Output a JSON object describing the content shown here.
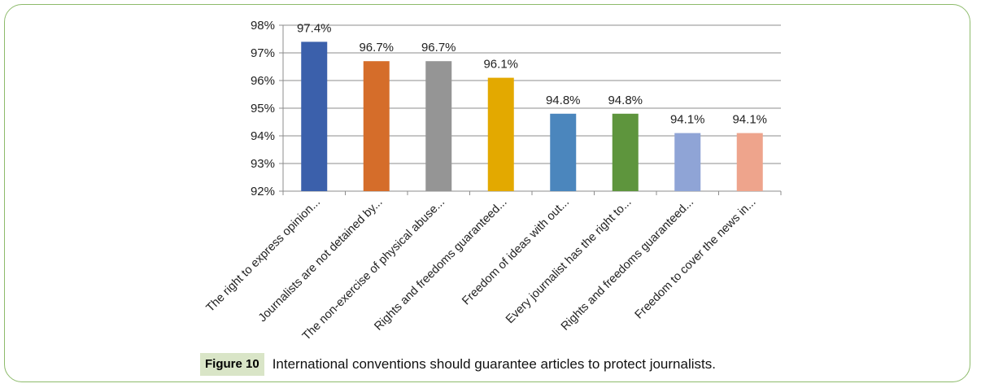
{
  "chart_data": {
    "type": "bar",
    "categories": [
      "The right to express opinion...",
      "Journalists are not detained by...",
      "The non-exercise of physical abuse...",
      "Rights and freedoms guaranteed...",
      "Freedom of ideas with out...",
      "Every journalist has the right to...",
      "Rights and freedoms guaranteed...",
      "Freedom to cover the news in..."
    ],
    "values": [
      97.4,
      96.7,
      96.7,
      96.1,
      94.8,
      94.8,
      94.1,
      94.1
    ],
    "data_labels": [
      "97.4%",
      "96.7%",
      "96.7%",
      "96.1%",
      "94.8%",
      "94.8%",
      "94.1%",
      "94.1%"
    ],
    "colors": [
      "#3b60ab",
      "#d56d2a",
      "#959595",
      "#e3a900",
      "#4b86bd",
      "#5e953d",
      "#8fa4d6",
      "#eea48c"
    ],
    "yticks": [
      "92%",
      "93%",
      "94%",
      "95%",
      "96%",
      "97%",
      "98%"
    ],
    "ylim": [
      92,
      98
    ],
    "grid": true
  },
  "figure": {
    "label": "Figure 10",
    "caption": "International conventions should guarantee articles to protect journalists."
  }
}
